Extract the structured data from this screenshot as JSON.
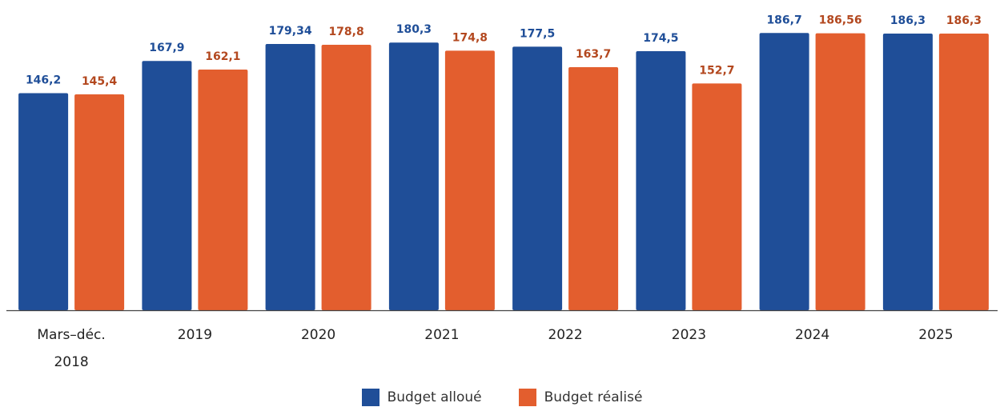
{
  "chart_data": {
    "type": "bar",
    "categories": [
      [
        "Mars–déc.",
        "2018"
      ],
      [
        "2019"
      ],
      [
        "2020"
      ],
      [
        "2021"
      ],
      [
        "2022"
      ],
      [
        "2023"
      ],
      [
        "2024"
      ],
      [
        "2025"
      ]
    ],
    "series": [
      {
        "name": "Budget alloué",
        "color": "#1f4e98",
        "label_color": "#1f4e98",
        "values": [
          146.2,
          167.9,
          179.34,
          180.3,
          177.5,
          174.5,
          186.7,
          186.3
        ],
        "labels": [
          "146,2",
          "167,9",
          "179,34",
          "180,3",
          "177,5",
          "174,5",
          "186,7",
          "186,3"
        ]
      },
      {
        "name": "Budget réalisé",
        "color": "#e35e2e",
        "label_color": "#b3481f",
        "values": [
          145.4,
          162.1,
          178.8,
          174.8,
          163.7,
          152.7,
          186.56,
          186.3
        ],
        "labels": [
          "145,4",
          "162,1",
          "178,8",
          "174,8",
          "163,7",
          "152,7",
          "186,56",
          "186,3"
        ]
      }
    ],
    "title": "",
    "xlabel": "",
    "ylabel": "",
    "ylim": [
      0,
      200
    ],
    "grid": false,
    "legend_position": "bottom-center"
  }
}
